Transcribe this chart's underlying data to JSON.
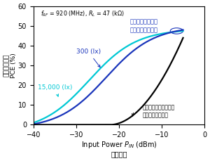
{
  "xlabel_en": "Input Power $P_{IN}$ (dBm)",
  "xlabel_ja": "入力電力",
  "ylabel_line1": "電力変換効率",
  "ylabel_line2": "PCE (%)",
  "xlim": [
    -40,
    0
  ],
  "ylim": [
    0,
    60
  ],
  "xticks": [
    -40,
    -30,
    -20,
    -10,
    0
  ],
  "yticks": [
    0,
    10,
    20,
    30,
    40,
    50,
    60
  ],
  "color_black": "#000000",
  "color_blue": "#1a35bb",
  "color_cyan": "#00c8d4",
  "synergy_line1": "太陽電池アシスト",
  "synergy_line2": "シナジー整流回路",
  "label_300": "300 (lx)",
  "label_15000": "15,000 (lx)",
  "label_no_assist_1": "太陽電池アシスト無し",
  "label_no_assist_2": "（従来整流回路）",
  "bg_color": "#ffffff"
}
